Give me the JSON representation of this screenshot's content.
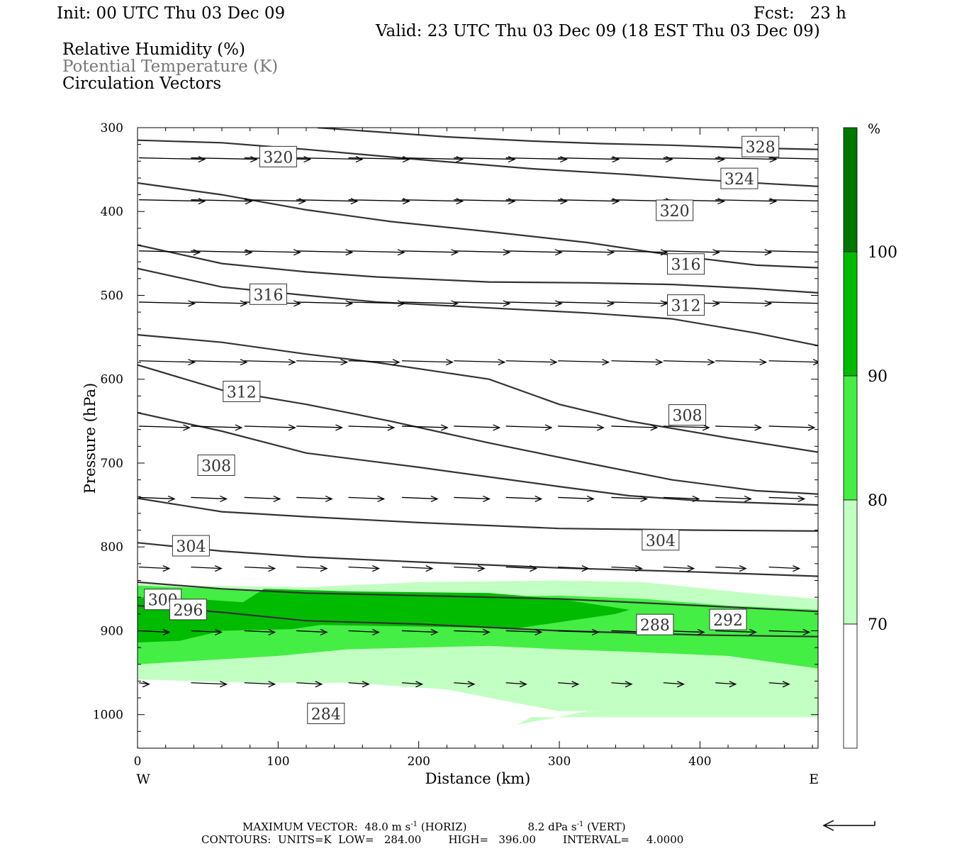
{
  "header": {
    "init": "Init: 00 UTC Thu 03 Dec 09",
    "fcst": "Fcst:   23 h",
    "valid": "Valid: 23 UTC Thu 03 Dec 09 (18 EST Thu 03 Dec 09)",
    "fields": [
      "Relative Humidity (%)",
      "Potential Temperature (K)",
      "Circulation Vectors"
    ]
  },
  "footer": {
    "max_vector_label": "MAXIMUM VECTOR:  48.0 m s",
    "max_vector_horiz": "(HORIZ)",
    "max_vector_vert_value": "8.2 dPa s",
    "max_vector_vert": "(VERT)",
    "exponent": "-1",
    "contours": "CONTOURS:  UNITS=K  LOW=   284.00        HIGH=   396.00        INTERVAL=     4.0000"
  },
  "colors": {
    "rh_70_80": "#c2ffc2",
    "rh_80_90": "#44ee44",
    "rh_90_100": "#00bb00",
    "rh_100": "#007700",
    "contour": "#333333",
    "fields_gray": "#777777"
  },
  "chart_data": {
    "type": "cross-section",
    "xlabel": "Distance (km)",
    "ylabel": "Pressure (hPa)",
    "x_range": [
      0,
      484
    ],
    "y_range": [
      300,
      1040
    ],
    "y_scale": "linear, inverted",
    "x_ticks": [
      "0",
      "100",
      "200",
      "300",
      "400"
    ],
    "y_ticks": [
      "300",
      "400",
      "500",
      "600",
      "700",
      "800",
      "900",
      "1000"
    ],
    "x_end_labels": {
      "west": "W",
      "east": "E"
    },
    "colorbar": {
      "unit": "%",
      "levels": [
        "70",
        "80",
        "90",
        "100"
      ],
      "bands": [
        {
          "range": [
            60,
            70
          ],
          "color": "#ffffff"
        },
        {
          "range": [
            70,
            80
          ],
          "color": "#c2ffc2"
        },
        {
          "range": [
            80,
            90
          ],
          "color": "#44ee44"
        },
        {
          "range": [
            90,
            100
          ],
          "color": "#00bb00"
        },
        {
          "range": [
            100,
            110
          ],
          "color": "#007700"
        }
      ]
    },
    "rh_regions": [
      {
        "band": "70-80",
        "x": [
          0,
          40,
          120,
          200,
          300,
          360,
          440,
          484,
          484,
          450,
          380,
          300,
          220,
          150,
          80,
          0
        ],
        "top": [
          844,
          846,
          848,
          842,
          840,
          842,
          856,
          862,
          1002,
          992,
          994,
          996,
          970,
          962,
          962,
          958
        ]
      },
      {
        "band": "70-80",
        "x": [
          270,
          320,
          380,
          440,
          484,
          484,
          400,
          330,
          280
        ],
        "top": [
          1012,
          996,
          992,
          991,
          991,
          1003,
          1003,
          1003,
          1003
        ]
      },
      {
        "band": "80-90",
        "x": [
          0,
          60,
          120,
          160,
          220,
          300,
          360,
          420,
          484,
          484,
          420,
          350,
          300,
          250,
          200,
          150,
          100,
          50,
          0
        ],
        "top": [
          846,
          850,
          858,
          866,
          860,
          858,
          862,
          870,
          875,
          945,
          930,
          925,
          922,
          918,
          920,
          922,
          930,
          935,
          940
        ]
      },
      {
        "band": "90-100",
        "x": [
          0,
          40,
          75,
          90,
          150,
          250,
          300,
          350,
          340,
          270,
          200,
          130,
          110,
          60,
          30,
          0
        ],
        "top": [
          860,
          862,
          866,
          850,
          853,
          855,
          862,
          875,
          880,
          897,
          895,
          893,
          898,
          900,
          912,
          914
        ]
      }
    ],
    "theta_contours": [
      {
        "label": "328",
        "x": [
          128,
          170,
          220,
          280,
          330,
          380,
          430,
          484
        ],
        "p": [
          300,
          305,
          311,
          316,
          319,
          321,
          324,
          326
        ],
        "label_at": [
          443,
          323
        ]
      },
      {
        "label": "324",
        "x": [
          0,
          60,
          120,
          200,
          280,
          350,
          400,
          450,
          484
        ],
        "p": [
          315,
          318,
          326,
          338,
          349,
          356,
          362,
          367,
          370
        ],
        "label_at": [
          428,
          361
        ]
      },
      {
        "label": "320",
        "x": [
          0,
          60,
          120,
          180,
          250,
          320,
          380,
          440,
          484
        ],
        "p": [
          366,
          380,
          398,
          412,
          424,
          437,
          452,
          464,
          467
        ],
        "label_at": [
          382,
          399
        ],
        "label_alt": [
          100,
          335
        ]
      },
      {
        "label": "316",
        "x": [
          0,
          60,
          120,
          170,
          250,
          320,
          380,
          440,
          484
        ],
        "p": [
          440,
          462,
          472,
          478,
          484,
          485,
          487,
          492,
          497
        ],
        "label_at": [
          390,
          463
        ],
        "label_alt": [
          93,
          499
        ]
      },
      {
        "label": "312",
        "x": [
          0,
          60,
          120,
          170,
          250,
          320,
          380,
          440,
          484
        ],
        "p": [
          468,
          490,
          500,
          508,
          515,
          521,
          528,
          545,
          560
        ],
        "label_at": [
          390,
          512
        ],
        "label_alt": [
          74,
          615
        ]
      },
      {
        "label": "308",
        "x": [
          0,
          60,
          120,
          170,
          250,
          300,
          350,
          420,
          484
        ],
        "p": [
          547,
          556,
          570,
          580,
          600,
          630,
          650,
          670,
          687
        ],
        "label_at": [
          391,
          643
        ],
        "label_alt": [
          56,
          703
        ]
      },
      {
        "label": "304",
        "x": [
          0,
          60,
          120,
          180,
          250,
          320,
          380,
          440,
          484
        ],
        "p": [
          583,
          613,
          630,
          650,
          676,
          700,
          720,
          733,
          737
        ],
        "label_at": [
          372,
          792
        ],
        "label_alt": [
          38,
          799
        ]
      },
      {
        "label": "300",
        "x": [
          0,
          60,
          120,
          200,
          300,
          350,
          400,
          484
        ],
        "p": [
          640,
          662,
          688,
          705,
          728,
          739,
          745,
          750
        ],
        "label_at": [
          18,
          863
        ]
      },
      {
        "label": "296",
        "x": [
          0,
          60,
          120,
          200,
          300,
          400,
          484
        ],
        "p": [
          742,
          758,
          764,
          771,
          778,
          780,
          781
        ],
        "label_at": [
          36,
          875
        ]
      },
      {
        "label": "292",
        "x": [
          0,
          60,
          120,
          200,
          300,
          400,
          484
        ],
        "p": [
          795,
          805,
          812,
          818,
          825,
          830,
          835
        ],
        "label_at": [
          420,
          887
        ]
      },
      {
        "label": "288",
        "x": [
          0,
          60,
          120,
          200,
          300,
          400,
          484
        ],
        "p": [
          842,
          850,
          855,
          858,
          862,
          870,
          877
        ],
        "label_at": [
          368,
          893
        ]
      },
      {
        "label": "284",
        "x": [
          0,
          60,
          120,
          200,
          300,
          400,
          484
        ],
        "p": [
          870,
          878,
          888,
          892,
          900,
          905,
          907
        ],
        "label_at": [
          134,
          999
        ]
      }
    ],
    "vectors": {
      "rows_p": [
        336,
        386,
        447,
        508,
        578,
        656,
        741,
        824,
        900,
        962
      ],
      "columns_x": [
        0,
        37,
        75,
        112,
        149,
        187,
        224,
        261,
        298,
        336,
        373,
        410,
        448,
        484
      ],
      "u_scale_note": "approximate arrow lengths in km of horizontal distance",
      "u": [
        [
          26,
          26,
          26,
          26,
          24,
          24,
          24,
          24,
          24,
          24,
          24,
          24,
          24,
          0
        ],
        [
          26,
          24,
          24,
          24,
          24,
          24,
          24,
          24,
          24,
          24,
          24,
          24,
          24,
          0
        ],
        [
          24,
          24,
          22,
          22,
          22,
          22,
          22,
          22,
          22,
          22,
          22,
          22,
          22,
          0
        ],
        [
          22,
          22,
          22,
          22,
          22,
          22,
          22,
          22,
          22,
          22,
          22,
          22,
          22,
          0
        ],
        [
          22,
          22,
          20,
          20,
          20,
          20,
          20,
          20,
          20,
          20,
          20,
          20,
          20,
          0
        ],
        [
          20,
          20,
          20,
          18,
          18,
          18,
          18,
          18,
          18,
          18,
          18,
          18,
          18,
          0
        ],
        [
          14,
          14,
          14,
          14,
          14,
          14,
          14,
          14,
          14,
          14,
          14,
          14,
          14,
          0
        ],
        [
          12,
          12,
          12,
          12,
          12,
          12,
          12,
          12,
          12,
          12,
          12,
          12,
          12,
          0
        ],
        [
          12,
          12,
          12,
          12,
          12,
          14,
          14,
          14,
          16,
          16,
          16,
          16,
          16,
          0
        ],
        [
          4,
          14,
          12,
          10,
          8,
          8,
          8,
          8,
          8,
          8,
          8,
          8,
          8,
          0
        ]
      ]
    }
  }
}
